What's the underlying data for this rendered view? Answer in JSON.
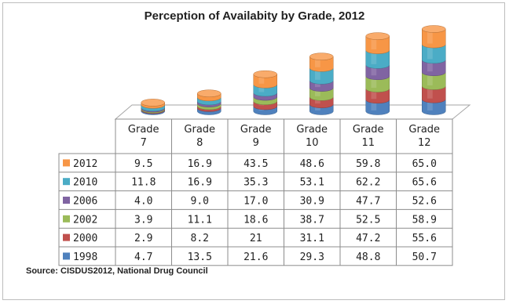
{
  "chart_data": {
    "type": "bar",
    "stacked": true,
    "three_d": true,
    "title": "Perception of Availabity by Grade, 2012",
    "categories": [
      "Grade 7",
      "Grade 8",
      "Grade 9",
      "Grade 10",
      "Grade 11",
      "Grade 12"
    ],
    "category_lines": [
      [
        "Grade",
        "7"
      ],
      [
        "Grade",
        "8"
      ],
      [
        "Grade",
        "9"
      ],
      [
        "Grade",
        "10"
      ],
      [
        "Grade",
        "11"
      ],
      [
        "Grade",
        "12"
      ]
    ],
    "series": [
      {
        "name": "1998",
        "color": "#4f81bd",
        "values": [
          "4.7",
          "13.5",
          "21.6",
          "29.3",
          "48.8",
          "50.7"
        ]
      },
      {
        "name": "2000",
        "color": "#c0504d",
        "values": [
          "2.9",
          "8.2",
          "21",
          "31.1",
          "47.2",
          "55.6"
        ]
      },
      {
        "name": "2002",
        "color": "#9bbb59",
        "values": [
          "3.9",
          "11.1",
          "18.6",
          "38.7",
          "52.5",
          "58.9"
        ]
      },
      {
        "name": "2006",
        "color": "#8064a2",
        "values": [
          "4.0",
          "9.0",
          "17.0",
          "30.9",
          "47.7",
          "52.6"
        ]
      },
      {
        "name": "2010",
        "color": "#4bacc6",
        "values": [
          "11.8",
          "16.9",
          "35.3",
          "53.1",
          "62.2",
          "65.6"
        ]
      },
      {
        "name": "2012",
        "color": "#f79646",
        "values": [
          "9.5",
          "16.9",
          "43.5",
          "48.6",
          "59.8",
          "65.0"
        ]
      }
    ],
    "table_row_order": [
      "2012",
      "2010",
      "2006",
      "2002",
      "2000",
      "1998"
    ],
    "data_table": true,
    "legend": "left of data table",
    "grid": false
  },
  "source": "Source: CISDUS2012,  National Drug Council"
}
